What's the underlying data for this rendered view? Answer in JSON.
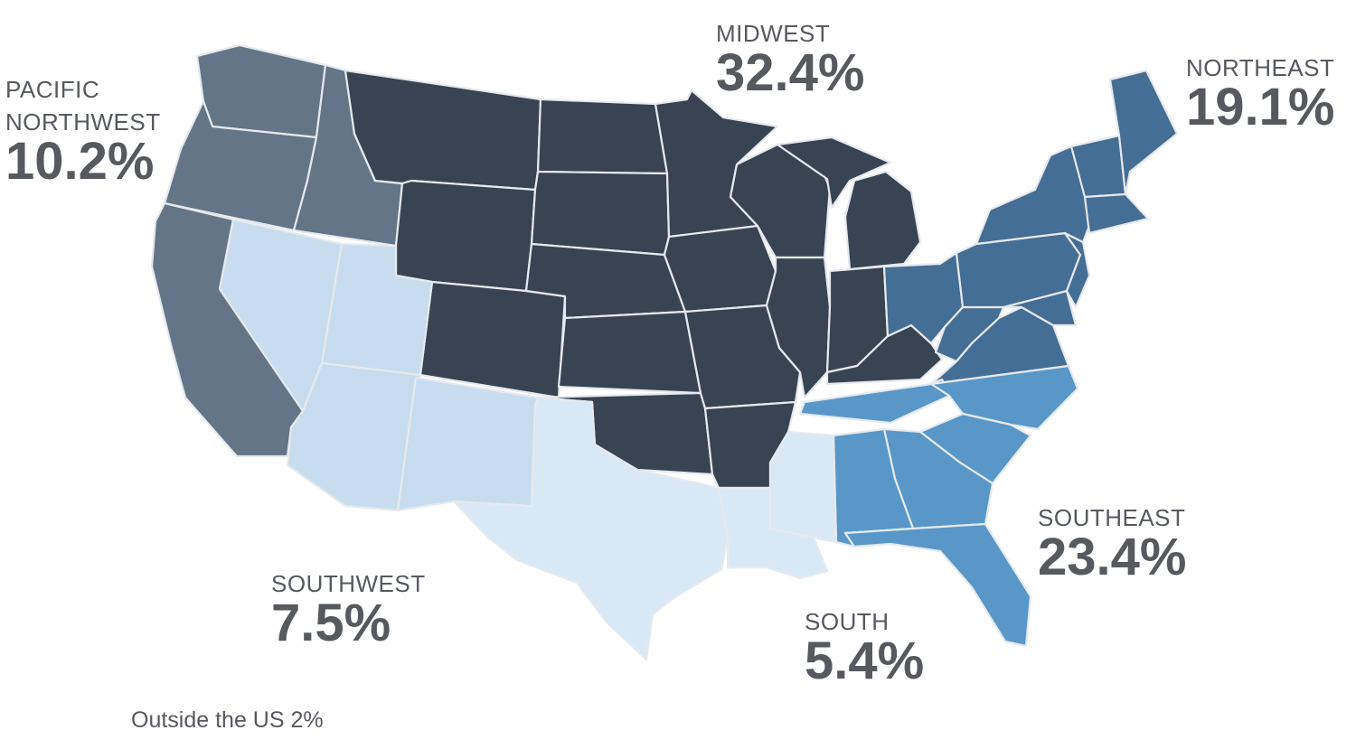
{
  "colors": {
    "pacific_northwest": "#637587",
    "midwest": "#384452",
    "northeast": "#446e94",
    "southeast": "#5897c8",
    "southwest": "#c7ddef",
    "south": "#d9e8f5",
    "border": "#e6e9ee",
    "text": "#56595e"
  },
  "regions": {
    "pacific_northwest": {
      "name_line1": "PACIFIC",
      "name_line2": "NORTHWEST",
      "percent": "10.2%"
    },
    "midwest": {
      "name": "MIDWEST",
      "percent": "32.4%"
    },
    "northeast": {
      "name": "NORTHEAST",
      "percent": "19.1%"
    },
    "southeast": {
      "name": "SOUTHEAST",
      "percent": "23.4%"
    },
    "southwest": {
      "name": "SOUTHWEST",
      "percent": "7.5%"
    },
    "south": {
      "name": "SOUTH",
      "percent": "5.4%"
    }
  },
  "footnote": "Outside the US 2%"
}
